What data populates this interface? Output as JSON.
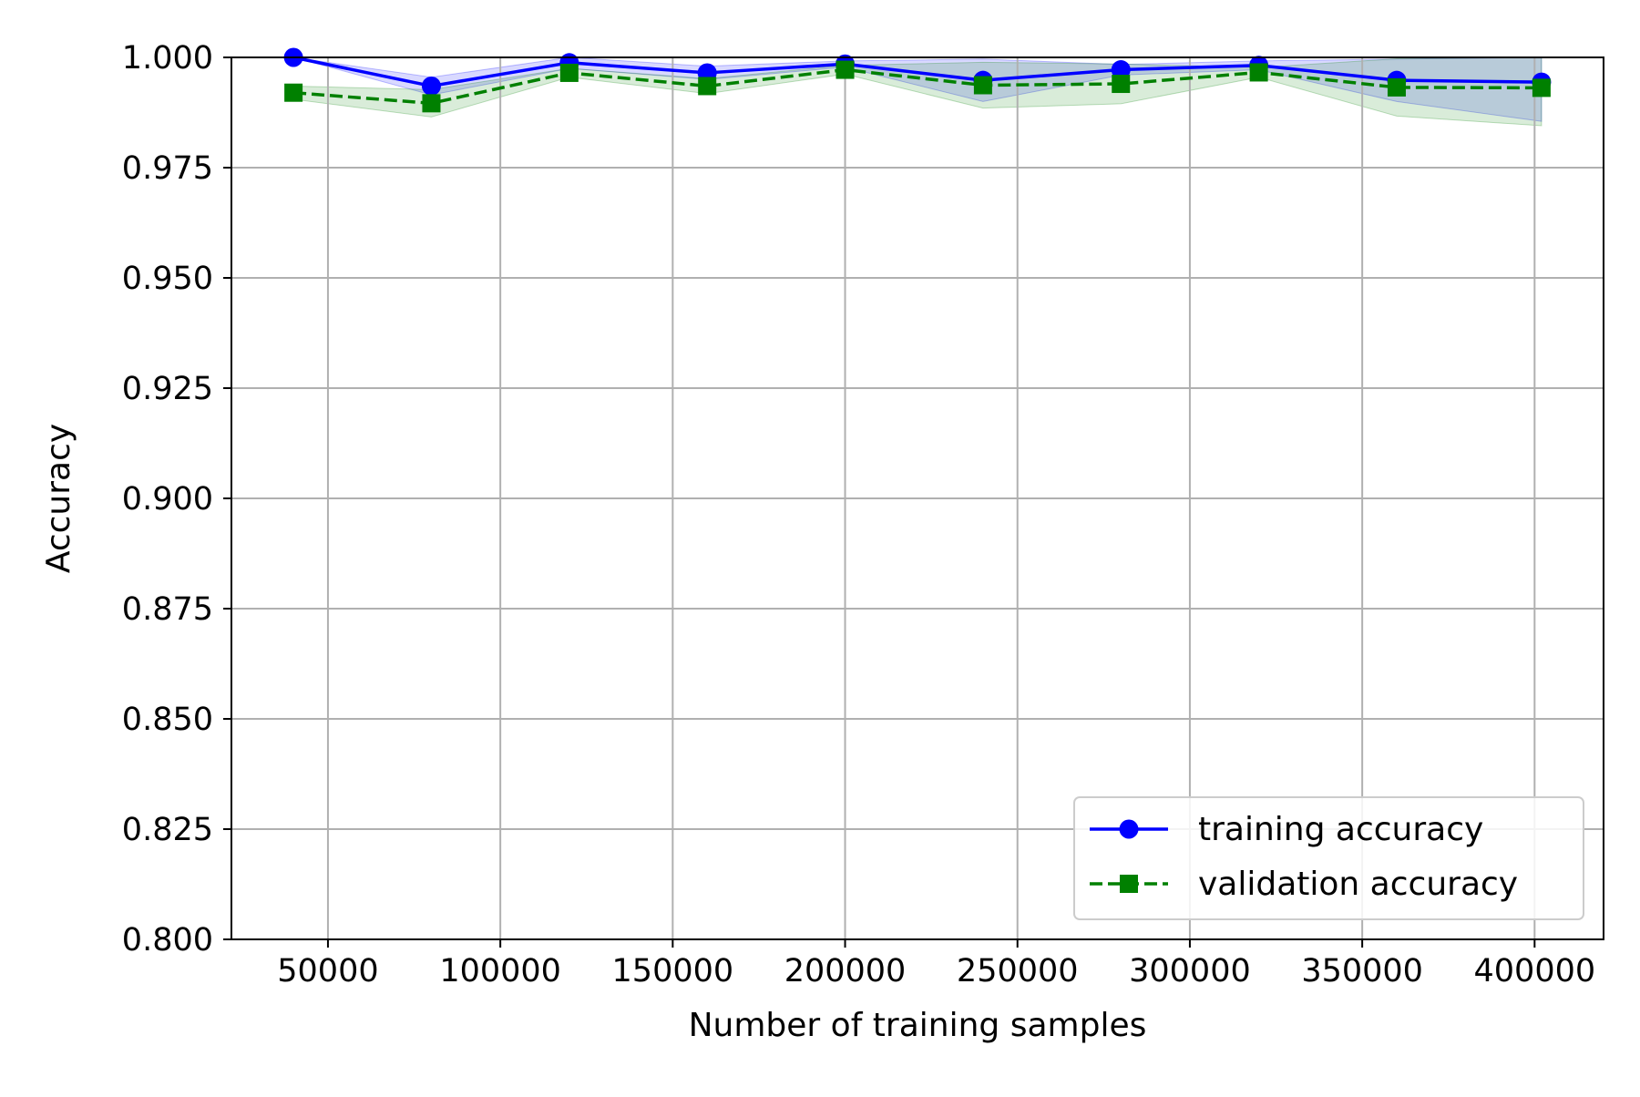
{
  "chart_data": {
    "type": "line",
    "title": "",
    "xlabel": "Number of training samples",
    "ylabel": "Accuracy",
    "xlim": [
      22000,
      420000
    ],
    "ylim": [
      0.8,
      1.0
    ],
    "x": [
      40000,
      80000,
      120000,
      160000,
      200000,
      240000,
      280000,
      320000,
      360000,
      402000
    ],
    "x_ticks": [
      50000,
      100000,
      150000,
      200000,
      250000,
      300000,
      350000,
      400000
    ],
    "x_tick_labels": [
      "50000",
      "100000",
      "150000",
      "200000",
      "250000",
      "300000",
      "350000",
      "400000"
    ],
    "y_ticks": [
      0.8,
      0.825,
      0.85,
      0.875,
      0.9,
      0.925,
      0.95,
      0.975,
      1.0
    ],
    "y_tick_labels": [
      "0.800",
      "0.825",
      "0.850",
      "0.875",
      "0.900",
      "0.925",
      "0.950",
      "0.975",
      "1.000"
    ],
    "grid": true,
    "legend_position": "lower-right",
    "series": [
      {
        "name": "training accuracy",
        "color": "#0000ff",
        "linestyle": "solid",
        "marker": "circle",
        "values": [
          1.0,
          0.9935,
          0.9988,
          0.9965,
          0.9985,
          0.9948,
          0.9972,
          0.9982,
          0.9948,
          0.9944
        ],
        "band_lower": [
          1.0,
          0.9915,
          0.9975,
          0.995,
          0.9978,
          0.99,
          0.996,
          0.9972,
          0.99,
          0.9855
        ],
        "band_upper": [
          1.0,
          0.9955,
          1.0,
          0.998,
          0.9992,
          0.9996,
          0.9984,
          0.9992,
          0.9996,
          1.0
        ]
      },
      {
        "name": "validation accuracy",
        "color": "#008000",
        "linestyle": "dashed",
        "marker": "square",
        "values": [
          0.992,
          0.9896,
          0.9965,
          0.9935,
          0.9972,
          0.9937,
          0.994,
          0.9966,
          0.9932,
          0.9931
        ],
        "band_lower": [
          0.9905,
          0.9865,
          0.9955,
          0.9918,
          0.9962,
          0.9885,
          0.9895,
          0.9955,
          0.9867,
          0.9845
        ],
        "band_upper": [
          0.9935,
          0.9927,
          0.9975,
          0.9952,
          0.9982,
          0.9989,
          0.9985,
          0.9977,
          0.9997,
          1.0
        ]
      }
    ]
  }
}
